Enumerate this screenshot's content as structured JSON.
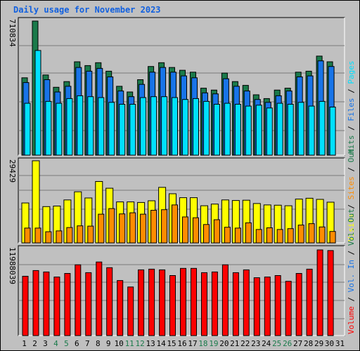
{
  "title": "Daily usage for November 2023",
  "colors": {
    "hits": "#1a7a4a",
    "files": "#1874e8",
    "pages": "#00e0ff",
    "visits": "#ffff00",
    "sites": "#ff8c00",
    "volume": "#ff0000",
    "weekend_label": "#1a7a4a",
    "weekday_label": "#000000",
    "background": "#c0c0c0"
  },
  "chart_data": [
    {
      "type": "bar",
      "title": "Daily usage for November 2023",
      "max_label": "710834",
      "axis_max": 710834,
      "legend": [
        {
          "name": "Hits",
          "color": "#1a7a4a"
        },
        {
          "name": "Files",
          "color": "#1874e8"
        },
        {
          "name": "Pages",
          "color": "#00e0ff"
        }
      ],
      "categories": [
        "1",
        "2",
        "3",
        "4",
        "5",
        "6",
        "7",
        "8",
        "9",
        "10",
        "11",
        "12",
        "13",
        "14",
        "15",
        "16",
        "17",
        "18",
        "19",
        "20",
        "21",
        "22",
        "23",
        "24",
        "25",
        "26",
        "27",
        "28",
        "29",
        "30",
        "31"
      ],
      "weekend_days": [
        "4",
        "5",
        "11",
        "12",
        "18",
        "19",
        "25",
        "26"
      ],
      "series": [
        {
          "name": "Hits",
          "values": [
            410000,
            710834,
            425000,
            360000,
            390000,
            495000,
            475000,
            490000,
            445000,
            365000,
            335000,
            400000,
            470000,
            490000,
            465000,
            450000,
            440000,
            355000,
            345000,
            435000,
            390000,
            370000,
            320000,
            300000,
            345000,
            355000,
            440000,
            445000,
            525000,
            495000,
            0
          ]
        },
        {
          "name": "Files",
          "values": [
            385000,
            0,
            400000,
            335000,
            365000,
            465000,
            445000,
            460000,
            415000,
            340000,
            310000,
            375000,
            440000,
            465000,
            440000,
            420000,
            410000,
            330000,
            325000,
            405000,
            365000,
            340000,
            295000,
            280000,
            315000,
            340000,
            415000,
            420000,
            500000,
            470000,
            0
          ]
        },
        {
          "name": "Pages",
          "values": [
            275000,
            555000,
            285000,
            275000,
            300000,
            315000,
            310000,
            305000,
            280000,
            270000,
            270000,
            305000,
            310000,
            310000,
            305000,
            295000,
            300000,
            285000,
            270000,
            275000,
            270000,
            260000,
            265000,
            250000,
            275000,
            270000,
            280000,
            260000,
            285000,
            255000,
            0
          ]
        }
      ]
    },
    {
      "type": "bar",
      "max_label": "29429",
      "axis_max": 29429,
      "legend": [
        {
          "name": "Visits",
          "color": "#ffff00"
        },
        {
          "name": "Sites",
          "color": "#ff8c00"
        },
        {
          "name": "Out",
          "color": "#1a7a4a"
        }
      ],
      "categories": [
        "1",
        "2",
        "3",
        "4",
        "5",
        "6",
        "7",
        "8",
        "9",
        "10",
        "11",
        "12",
        "13",
        "14",
        "15",
        "16",
        "17",
        "18",
        "19",
        "20",
        "21",
        "22",
        "23",
        "24",
        "25",
        "26",
        "27",
        "28",
        "29",
        "30",
        "31"
      ],
      "series": [
        {
          "name": "Visits",
          "values": [
            14300,
            29429,
            13000,
            13200,
            15400,
            18300,
            16100,
            22000,
            19600,
            14700,
            14700,
            14500,
            15100,
            19900,
            17600,
            16200,
            16200,
            13300,
            13900,
            15400,
            15200,
            15300,
            14100,
            13600,
            13500,
            13300,
            15700,
            16000,
            15600,
            14600,
            0
          ]
        },
        {
          "name": "Sites",
          "values": [
            5300,
            5300,
            4000,
            4300,
            5500,
            6100,
            6000,
            10300,
            12300,
            10400,
            10800,
            10300,
            11700,
            11900,
            13600,
            9300,
            9000,
            6600,
            8300,
            5600,
            5300,
            7200,
            4800,
            5400,
            4800,
            5100,
            6400,
            6900,
            5700,
            4100,
            0
          ]
        }
      ]
    },
    {
      "type": "bar",
      "max_label": "11988039",
      "axis_max": 11988039,
      "legend": [
        {
          "name": "Volume",
          "color": "#ff0000"
        },
        {
          "name": "Vol. In",
          "color": "#1874e8"
        },
        {
          "name": "Vol. Out",
          "color": "#1a7a4a"
        }
      ],
      "categories": [
        "1",
        "2",
        "3",
        "4",
        "5",
        "6",
        "7",
        "8",
        "9",
        "10",
        "11",
        "12",
        "13",
        "14",
        "15",
        "16",
        "17",
        "18",
        "19",
        "20",
        "21",
        "22",
        "23",
        "24",
        "25",
        "26",
        "27",
        "28",
        "29",
        "30",
        "31"
      ],
      "series": [
        {
          "name": "Volume",
          "values": [
            8300000,
            9100000,
            8900000,
            8200000,
            8700000,
            9900000,
            8800000,
            10300000,
            9500000,
            7700000,
            6800000,
            9200000,
            9300000,
            9200000,
            8400000,
            9400000,
            9400000,
            8800000,
            8900000,
            9900000,
            8800000,
            9200000,
            8100000,
            8200000,
            8400000,
            7600000,
            8700000,
            9300000,
            11988039,
            11900000,
            0
          ]
        }
      ]
    }
  ]
}
